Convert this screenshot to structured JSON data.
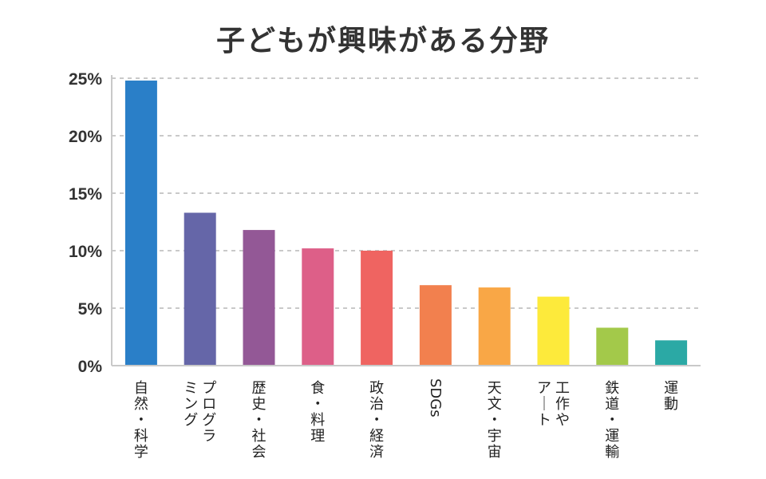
{
  "chart_data": {
    "type": "bar",
    "title": "子どもが興味がある分野",
    "xlabel": "",
    "ylabel": "",
    "ylim": [
      0,
      25
    ],
    "ytick_values": [
      0,
      5,
      10,
      15,
      20,
      25
    ],
    "ytick_labels": [
      "0%",
      "5%",
      "10%",
      "15%",
      "20%",
      "25%"
    ],
    "grid": true,
    "categories": [
      {
        "label": "自然・科学",
        "lines": [
          "自然・科学"
        ]
      },
      {
        "label": "プログラミング",
        "lines": [
          "プログラ",
          "ミング"
        ]
      },
      {
        "label": "歴史・社会",
        "lines": [
          "歴史・社会"
        ]
      },
      {
        "label": "食・料理",
        "lines": [
          "食・料理"
        ]
      },
      {
        "label": "政治・経済",
        "lines": [
          "政治・経済"
        ]
      },
      {
        "label": "SDGs",
        "lines": [
          "SDGs"
        ]
      },
      {
        "label": "天文・宇宙",
        "lines": [
          "天文・宇宙"
        ]
      },
      {
        "label": "工作やアート",
        "lines": [
          "工作や",
          "アート"
        ]
      },
      {
        "label": "鉄道・運輸",
        "lines": [
          "鉄道・運輸"
        ]
      },
      {
        "label": "運動",
        "lines": [
          "運動"
        ]
      }
    ],
    "values": [
      24.8,
      13.3,
      11.8,
      10.2,
      10.0,
      7.0,
      6.8,
      6.0,
      3.3,
      2.2
    ],
    "colors": [
      "#2a7fc8",
      "#6566a8",
      "#935896",
      "#dd5f88",
      "#ef6461",
      "#f2804e",
      "#f9a746",
      "#fdea3b",
      "#a3c94a",
      "#2ba9a5"
    ]
  }
}
